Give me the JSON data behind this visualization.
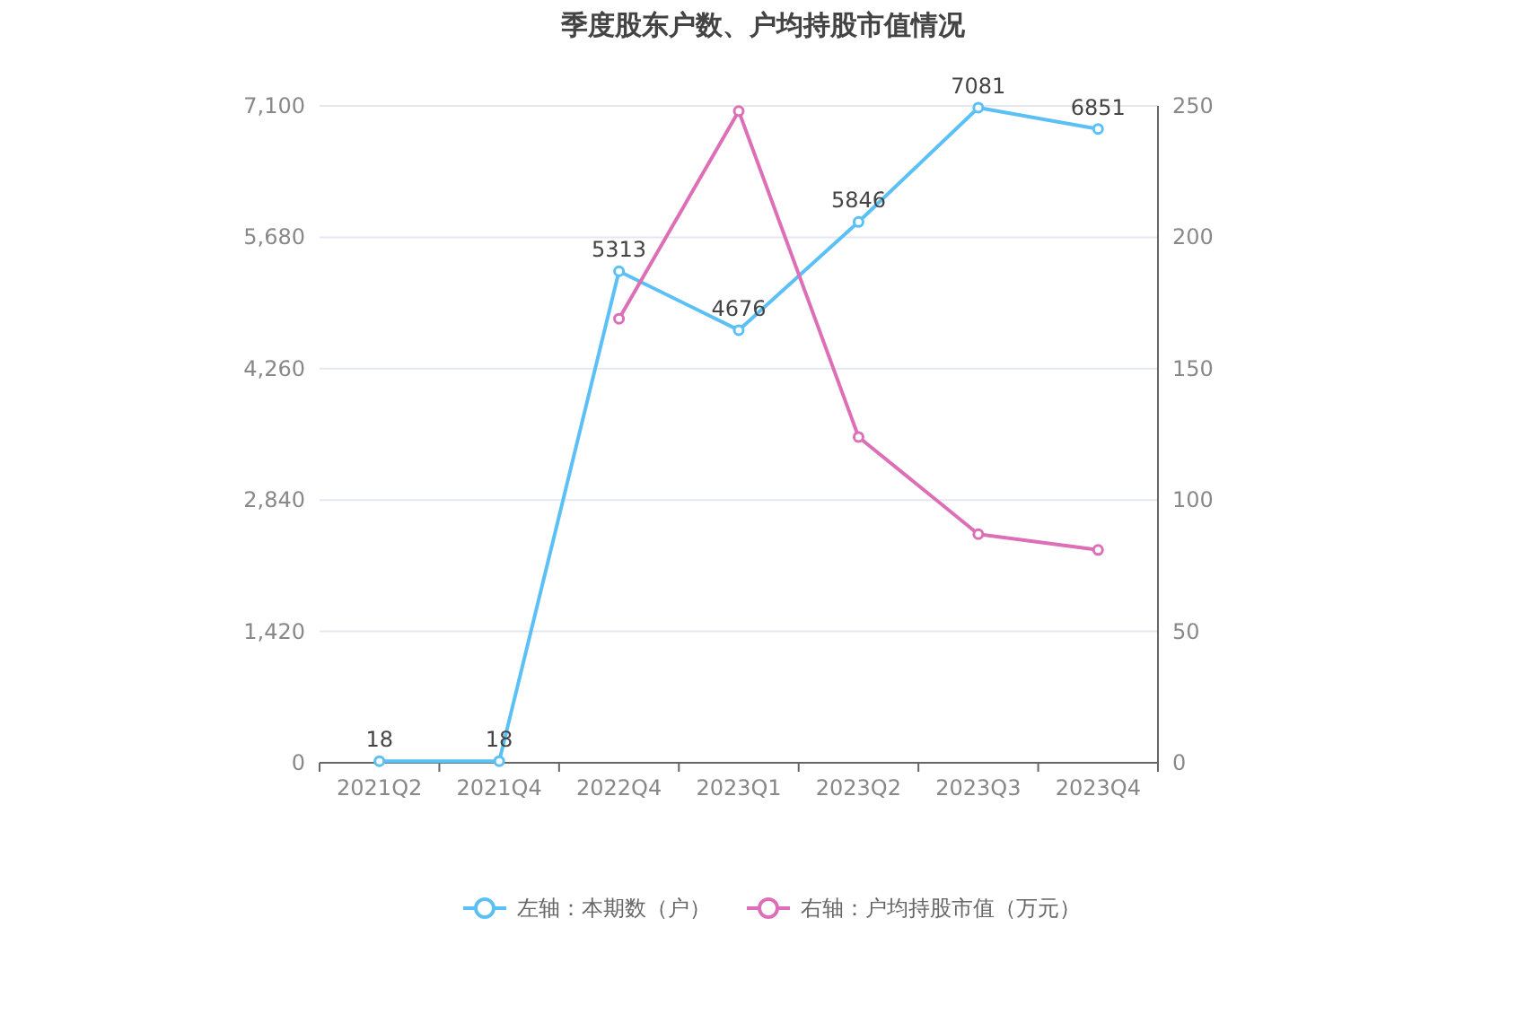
{
  "chart_data": {
    "type": "line",
    "title": "季度股东户数、户均持股市值情况",
    "categories": [
      "2021Q2",
      "2021Q4",
      "2022Q4",
      "2023Q1",
      "2023Q2",
      "2023Q3",
      "2023Q4"
    ],
    "series": [
      {
        "name": "左轴：本期数（户）",
        "color": "#5bc0f5",
        "values": [
          18,
          18,
          5313,
          4676,
          5846,
          7081,
          6851
        ],
        "value_labels": [
          "18",
          "18",
          "5313",
          "4676",
          "5846",
          "7081",
          "6851"
        ]
      },
      {
        "name": "右轴：户均持股市值（万元）",
        "color": "#dd6fb6",
        "axis": "y2",
        "values": [
          null,
          null,
          169,
          248,
          124,
          87,
          81
        ]
      }
    ],
    "ylim": [
      0,
      7100
    ],
    "yticks": [
      0,
      {
        "value": 1420,
        "label": "1,420"
      },
      {
        "value": 2840,
        "label": "2,840"
      },
      {
        "value": 4260,
        "label": "4,260"
      },
      {
        "value": 5680,
        "label": "5,680"
      },
      {
        "value": 7100,
        "label": "7,100"
      }
    ],
    "y2lim": [
      0,
      250
    ],
    "y2ticks": [
      0,
      50,
      100,
      150,
      200,
      250
    ],
    "grid": "y",
    "legend": "bottom",
    "marker": "circle"
  }
}
